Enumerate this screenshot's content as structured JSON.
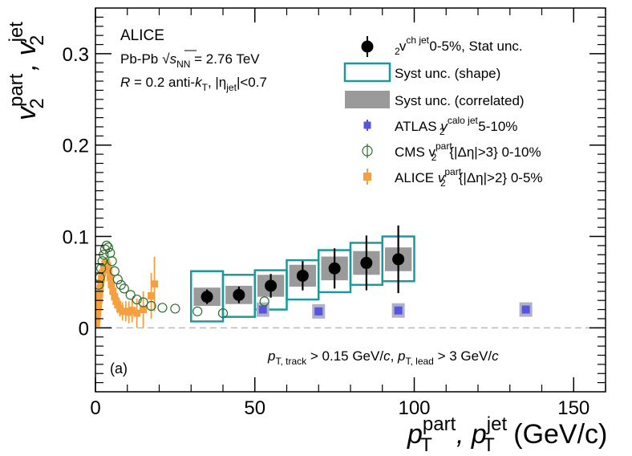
{
  "chart_data": {
    "type": "scatter",
    "title": "",
    "xlabel": {
      "main": "p",
      "sup1": "part",
      "sub1": "T",
      "sep": ", p",
      "sup2": "jet",
      "sub2": "T",
      "units": " (GeV/c)"
    },
    "ylabel": {
      "main": "v",
      "sup1": "part",
      "sub1": "2",
      "sep": ", v",
      "sup2": "jet",
      "sub2": "2"
    },
    "xlim": [
      0,
      160
    ],
    "ylim": [
      -0.07,
      0.35
    ],
    "x_ticks": [
      0,
      50,
      100,
      150
    ],
    "x_tick_labels": [
      "0",
      "50",
      "100",
      "150"
    ],
    "y_ticks": [
      0,
      0.1,
      0.2,
      0.3
    ],
    "y_tick_labels": [
      "0",
      "0.1",
      "0.2",
      "0.3"
    ],
    "grid": false,
    "zero_line": true,
    "legend_position": "top-right",
    "annotations": {
      "experiment": "ALICE",
      "system_a": "Pb-Pb",
      "system_b": "√",
      "system_c": "s",
      "system_d": "NN",
      "system_e": " = 2.76 TeV",
      "jet_a": "R",
      "jet_b": " = 0.2 anti-",
      "jet_c": "k",
      "jet_d": "T",
      "jet_e": ", |η",
      "jet_f": "jet",
      "jet_g": "|<0.7",
      "panel": "(a)",
      "cut_a": "p",
      "cut_b": "T, track",
      "cut_c": " > 0.15 GeV/",
      "cut_d": "c",
      "cut_e": ", ",
      "cut_f": "p",
      "cut_g": "T, lead",
      "cut_h": " > 3 GeV/",
      "cut_i": "c"
    },
    "legend": {
      "alice_jet": {
        "a": "v",
        "b": "ch jet",
        "c": "2",
        "d": " 0-5%, Stat unc."
      },
      "syst_shape": "Syst unc. (shape)",
      "syst_corr": "Syst unc. (correlated)",
      "atlas": {
        "a": "ATLAS ",
        "b": "v",
        "c": "calo jet",
        "d": "2",
        "e": " 5-10%"
      },
      "cms": {
        "a": "CMS v",
        "b": "part",
        "c": "2",
        "d": "{|Δη|>3} 0-10%"
      },
      "alice_part": {
        "a": "ALICE ",
        "b": "v",
        "c": "part",
        "d": "2",
        "e": "{|Δη|>2} 0-5%"
      }
    },
    "colors": {
      "alice_jet": "#000000",
      "syst_shape": "#1a9a9a",
      "syst_corr": "#9a9a9a",
      "atlas": "#5555dd",
      "atlas_box": "#b0b0c8",
      "cms": "#2a6e2a",
      "alice_part": "#f5a040",
      "zero_line": "#bbbbbb"
    },
    "series": [
      {
        "key": "alice_jet",
        "points": [
          {
            "x": 35,
            "y": 0.034,
            "ey": 0.008,
            "xw": 5,
            "shape_lo": 0.007,
            "shape_hi": 0.062,
            "corr": 0.01
          },
          {
            "x": 45,
            "y": 0.036,
            "ey": 0.009,
            "xw": 5,
            "shape_lo": 0.012,
            "shape_hi": 0.058,
            "corr": 0.01
          },
          {
            "x": 55,
            "y": 0.046,
            "ey": 0.013,
            "xw": 5,
            "shape_lo": 0.02,
            "shape_hi": 0.063,
            "corr": 0.012
          },
          {
            "x": 65,
            "y": 0.057,
            "ey": 0.016,
            "xw": 5,
            "shape_lo": 0.031,
            "shape_hi": 0.074,
            "corr": 0.012
          },
          {
            "x": 75,
            "y": 0.065,
            "ey": 0.022,
            "xw": 5,
            "shape_lo": 0.039,
            "shape_hi": 0.085,
            "corr": 0.013
          },
          {
            "x": 85,
            "y": 0.071,
            "ey": 0.03,
            "xw": 5,
            "shape_lo": 0.047,
            "shape_hi": 0.093,
            "corr": 0.013
          },
          {
            "x": 95,
            "y": 0.075,
            "ey": 0.037,
            "xw": 5,
            "shape_lo": 0.051,
            "shape_hi": 0.1,
            "corr": 0.013
          }
        ]
      },
      {
        "key": "atlas",
        "points": [
          {
            "x": 52.5,
            "y": 0.02,
            "ey": 0.004
          },
          {
            "x": 70,
            "y": 0.018,
            "ey": 0.004
          },
          {
            "x": 95,
            "y": 0.019,
            "ey": 0.002
          },
          {
            "x": 135,
            "y": 0.02,
            "ey": 0.004
          }
        ]
      },
      {
        "key": "cms",
        "points": [
          {
            "x": 1.0,
            "y": 0.047
          },
          {
            "x": 1.4,
            "y": 0.055
          },
          {
            "x": 1.8,
            "y": 0.065
          },
          {
            "x": 2.2,
            "y": 0.073
          },
          {
            "x": 2.6,
            "y": 0.08
          },
          {
            "x": 3.0,
            "y": 0.086
          },
          {
            "x": 3.5,
            "y": 0.09
          },
          {
            "x": 4.0,
            "y": 0.088
          },
          {
            "x": 4.6,
            "y": 0.082
          },
          {
            "x": 5.2,
            "y": 0.073
          },
          {
            "x": 6.0,
            "y": 0.062
          },
          {
            "x": 7.0,
            "y": 0.053
          },
          {
            "x": 8.0,
            "y": 0.047
          },
          {
            "x": 9.0,
            "y": 0.043
          },
          {
            "x": 11,
            "y": 0.036
          },
          {
            "x": 13,
            "y": 0.031
          },
          {
            "x": 15,
            "y": 0.028
          },
          {
            "x": 17.5,
            "y": 0.024
          },
          {
            "x": 21,
            "y": 0.022
          },
          {
            "x": 25,
            "y": 0.021
          },
          {
            "x": 32,
            "y": 0.018
          },
          {
            "x": 40,
            "y": 0.016
          },
          {
            "x": 53,
            "y": 0.029
          }
        ]
      },
      {
        "key": "alice_part",
        "points": [
          {
            "x": 0.3,
            "y": 0.005,
            "ey": 0.003
          },
          {
            "x": 0.5,
            "y": 0.01,
            "ey": 0.003
          },
          {
            "x": 0.7,
            "y": 0.016,
            "ey": 0.003
          },
          {
            "x": 0.9,
            "y": 0.023,
            "ey": 0.003
          },
          {
            "x": 1.1,
            "y": 0.03,
            "ey": 0.003
          },
          {
            "x": 1.3,
            "y": 0.037,
            "ey": 0.003
          },
          {
            "x": 1.5,
            "y": 0.043,
            "ey": 0.003
          },
          {
            "x": 1.7,
            "y": 0.049,
            "ey": 0.004
          },
          {
            "x": 1.9,
            "y": 0.054,
            "ey": 0.004
          },
          {
            "x": 2.2,
            "y": 0.06,
            "ey": 0.004
          },
          {
            "x": 2.6,
            "y": 0.066,
            "ey": 0.004
          },
          {
            "x": 3.0,
            "y": 0.07,
            "ey": 0.004
          },
          {
            "x": 3.4,
            "y": 0.071,
            "ey": 0.005
          },
          {
            "x": 3.8,
            "y": 0.068,
            "ey": 0.005
          },
          {
            "x": 4.2,
            "y": 0.063,
            "ey": 0.006
          },
          {
            "x": 4.6,
            "y": 0.055,
            "ey": 0.006
          },
          {
            "x": 5.0,
            "y": 0.047,
            "ey": 0.007
          },
          {
            "x": 5.5,
            "y": 0.04,
            "ey": 0.007
          },
          {
            "x": 6.0,
            "y": 0.034,
            "ey": 0.008
          },
          {
            "x": 6.5,
            "y": 0.029,
            "ey": 0.008
          },
          {
            "x": 7.0,
            "y": 0.025,
            "ey": 0.009
          },
          {
            "x": 7.7,
            "y": 0.021,
            "ey": 0.009
          },
          {
            "x": 8.5,
            "y": 0.018,
            "ey": 0.01
          },
          {
            "x": 9.5,
            "y": 0.018,
            "ey": 0.011
          },
          {
            "x": 10.5,
            "y": 0.017,
            "ey": 0.012
          },
          {
            "x": 11.5,
            "y": 0.019,
            "ey": 0.013
          },
          {
            "x": 13,
            "y": 0.016,
            "ey": 0.016
          },
          {
            "x": 15,
            "y": 0.02,
            "ey": 0.02
          },
          {
            "x": 17.5,
            "y": 0.035,
            "ey": 0.025
          },
          {
            "x": 18.5,
            "y": 0.048,
            "ey": 0.03
          }
        ]
      }
    ]
  }
}
